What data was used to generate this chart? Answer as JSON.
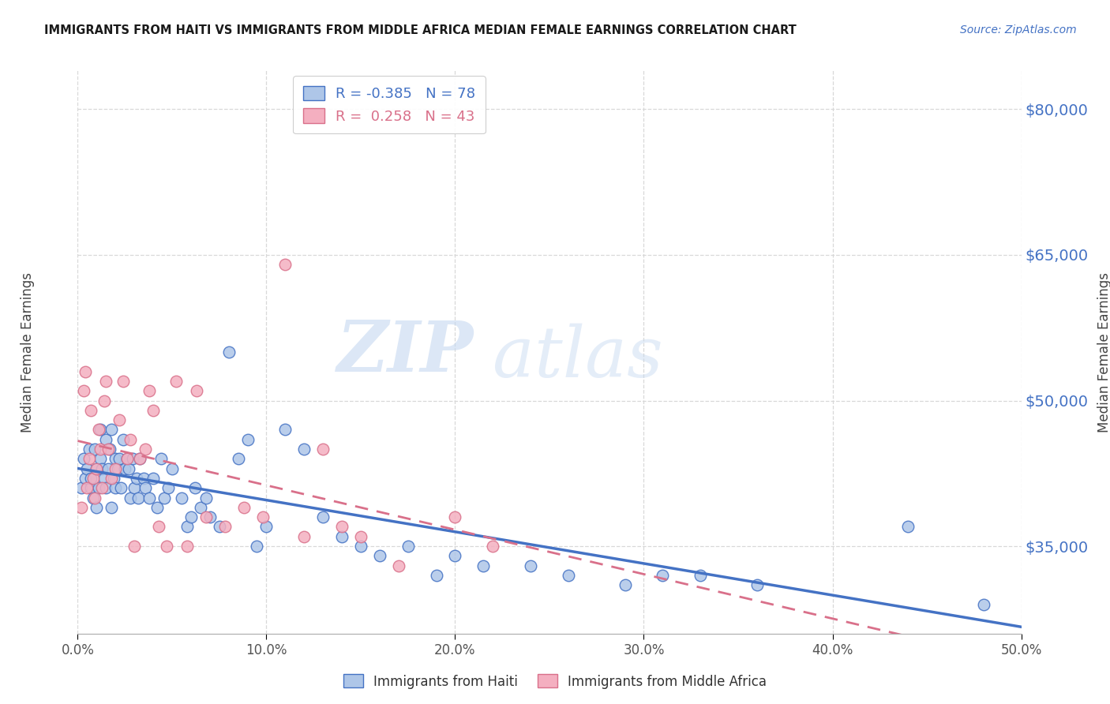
{
  "title": "IMMIGRANTS FROM HAITI VS IMMIGRANTS FROM MIDDLE AFRICA MEDIAN FEMALE EARNINGS CORRELATION CHART",
  "source": "Source: ZipAtlas.com",
  "ylabel": "Median Female Earnings",
  "watermark_zip": "ZIP",
  "watermark_atlas": "atlas",
  "legend_haiti": "Immigrants from Haiti",
  "legend_africa": "Immigrants from Middle Africa",
  "r_haiti": -0.385,
  "n_haiti": 78,
  "r_africa": 0.258,
  "n_africa": 43,
  "xlim": [
    0.0,
    0.5
  ],
  "ylim": [
    26000,
    84000
  ],
  "yticks": [
    35000,
    50000,
    65000,
    80000
  ],
  "xticks": [
    0.0,
    0.1,
    0.2,
    0.3,
    0.4,
    0.5
  ],
  "haiti_color": "#aec6e8",
  "africa_color": "#f4afc0",
  "haiti_line_color": "#4472c4",
  "africa_line_color": "#d9708a",
  "axis_label_color": "#4472c4",
  "grid_color": "#d8d8d8",
  "background_color": "#ffffff",
  "haiti_x": [
    0.002,
    0.003,
    0.004,
    0.005,
    0.006,
    0.007,
    0.007,
    0.008,
    0.009,
    0.01,
    0.01,
    0.011,
    0.012,
    0.012,
    0.013,
    0.014,
    0.015,
    0.015,
    0.016,
    0.017,
    0.018,
    0.018,
    0.019,
    0.02,
    0.02,
    0.021,
    0.022,
    0.023,
    0.024,
    0.025,
    0.026,
    0.027,
    0.028,
    0.029,
    0.03,
    0.031,
    0.032,
    0.033,
    0.035,
    0.036,
    0.038,
    0.04,
    0.042,
    0.044,
    0.046,
    0.048,
    0.05,
    0.055,
    0.058,
    0.06,
    0.062,
    0.065,
    0.068,
    0.07,
    0.075,
    0.08,
    0.085,
    0.09,
    0.095,
    0.1,
    0.11,
    0.12,
    0.13,
    0.14,
    0.15,
    0.16,
    0.175,
    0.19,
    0.2,
    0.215,
    0.24,
    0.26,
    0.29,
    0.31,
    0.33,
    0.36,
    0.44,
    0.48
  ],
  "haiti_y": [
    41000,
    44000,
    42000,
    43000,
    45000,
    41000,
    42000,
    40000,
    45000,
    39000,
    43000,
    41000,
    44000,
    47000,
    43000,
    42000,
    41000,
    46000,
    43000,
    45000,
    47000,
    39000,
    42000,
    44000,
    41000,
    43000,
    44000,
    41000,
    46000,
    43000,
    44000,
    43000,
    40000,
    44000,
    41000,
    42000,
    40000,
    44000,
    42000,
    41000,
    40000,
    42000,
    39000,
    44000,
    40000,
    41000,
    43000,
    40000,
    37000,
    38000,
    41000,
    39000,
    40000,
    38000,
    37000,
    55000,
    44000,
    46000,
    35000,
    37000,
    47000,
    45000,
    38000,
    36000,
    35000,
    34000,
    35000,
    32000,
    34000,
    33000,
    33000,
    32000,
    31000,
    32000,
    32000,
    31000,
    37000,
    29000
  ],
  "africa_x": [
    0.002,
    0.003,
    0.004,
    0.005,
    0.006,
    0.007,
    0.008,
    0.009,
    0.01,
    0.011,
    0.012,
    0.013,
    0.014,
    0.015,
    0.016,
    0.018,
    0.02,
    0.022,
    0.024,
    0.026,
    0.028,
    0.03,
    0.033,
    0.036,
    0.038,
    0.04,
    0.043,
    0.047,
    0.052,
    0.058,
    0.063,
    0.068,
    0.078,
    0.088,
    0.098,
    0.11,
    0.12,
    0.13,
    0.14,
    0.15,
    0.17,
    0.2,
    0.22
  ],
  "africa_y": [
    39000,
    51000,
    53000,
    41000,
    44000,
    49000,
    42000,
    40000,
    43000,
    47000,
    45000,
    41000,
    50000,
    52000,
    45000,
    42000,
    43000,
    48000,
    52000,
    44000,
    46000,
    35000,
    44000,
    45000,
    51000,
    49000,
    37000,
    35000,
    52000,
    35000,
    51000,
    38000,
    37000,
    39000,
    38000,
    64000,
    36000,
    45000,
    37000,
    36000,
    33000,
    38000,
    35000
  ]
}
